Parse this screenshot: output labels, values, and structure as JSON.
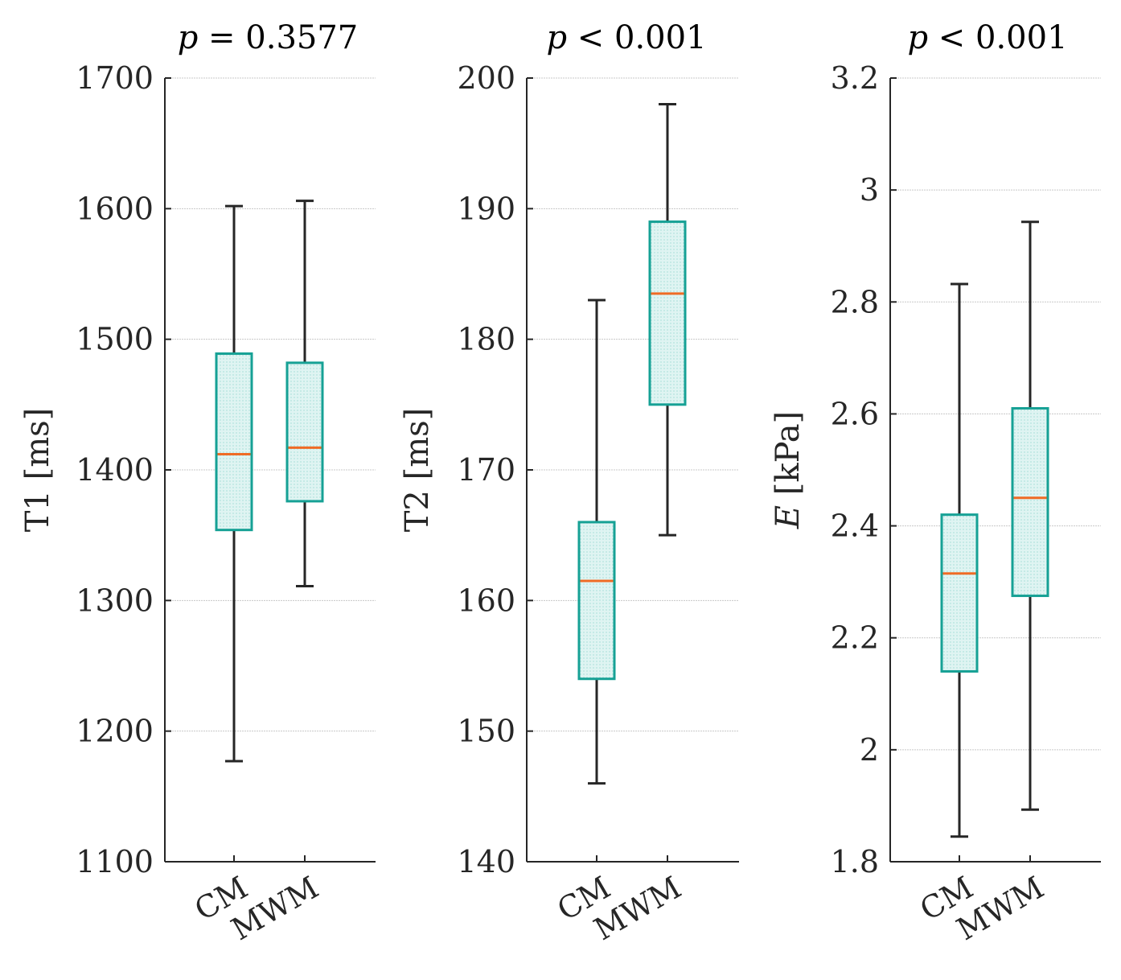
{
  "chart_data": [
    {
      "type": "box",
      "title_var": "p",
      "title_rest": " = 0.3577",
      "ylabel_var": "",
      "ylabel_rest": "T1 [ms]",
      "ylim": [
        1100,
        1700
      ],
      "yticks": [
        1100,
        1200,
        1300,
        1400,
        1500,
        1600,
        1700
      ],
      "ytick_labels": [
        "1100",
        "1200",
        "1300",
        "1400",
        "1500",
        "1600",
        "1700"
      ],
      "categories": [
        "CM",
        "MWM"
      ],
      "boxes": [
        {
          "whisker_low": 1177,
          "q1": 1354,
          "median": 1412,
          "q3": 1489,
          "whisker_high": 1602
        },
        {
          "whisker_low": 1311,
          "q1": 1376,
          "median": 1417,
          "q3": 1482,
          "whisker_high": 1606
        }
      ],
      "grid": true
    },
    {
      "type": "box",
      "title_var": "p",
      "title_rest": " < 0.001",
      "ylabel_var": "",
      "ylabel_rest": "T2 [ms]",
      "ylim": [
        140,
        200
      ],
      "yticks": [
        140,
        150,
        160,
        170,
        180,
        190,
        200
      ],
      "ytick_labels": [
        "140",
        "150",
        "160",
        "170",
        "180",
        "190",
        "200"
      ],
      "categories": [
        "CM",
        "MWM"
      ],
      "boxes": [
        {
          "whisker_low": 146,
          "q1": 154,
          "median": 161.5,
          "q3": 166,
          "whisker_high": 183
        },
        {
          "whisker_low": 165,
          "q1": 175,
          "median": 183.5,
          "q3": 189,
          "whisker_high": 198
        }
      ],
      "grid": true
    },
    {
      "type": "box",
      "title_var": "p",
      "title_rest": " < 0.001",
      "ylabel_var": "E",
      "ylabel_rest": " [kPa]",
      "ylim": [
        1.8,
        3.2
      ],
      "yticks": [
        1.8,
        2.0,
        2.2,
        2.4,
        2.6,
        2.8,
        3.0,
        3.2
      ],
      "ytick_labels": [
        "1.8",
        "2",
        "2.2",
        "2.4",
        "2.6",
        "2.8",
        "3",
        "3.2"
      ],
      "categories": [
        "CM",
        "MWM"
      ],
      "boxes": [
        {
          "whisker_low": 1.845,
          "q1": 2.14,
          "median": 2.315,
          "q3": 2.42,
          "whisker_high": 2.832
        },
        {
          "whisker_low": 1.893,
          "q1": 2.275,
          "median": 2.45,
          "q3": 2.61,
          "whisker_high": 2.943
        }
      ],
      "grid": true
    }
  ],
  "colors": {
    "box_edge": "#16a195",
    "box_fill": "#d3f0ed",
    "median": "#ef6b25",
    "whisker": "#262626",
    "axis": "#262626",
    "grid": "#c8c8c8"
  }
}
